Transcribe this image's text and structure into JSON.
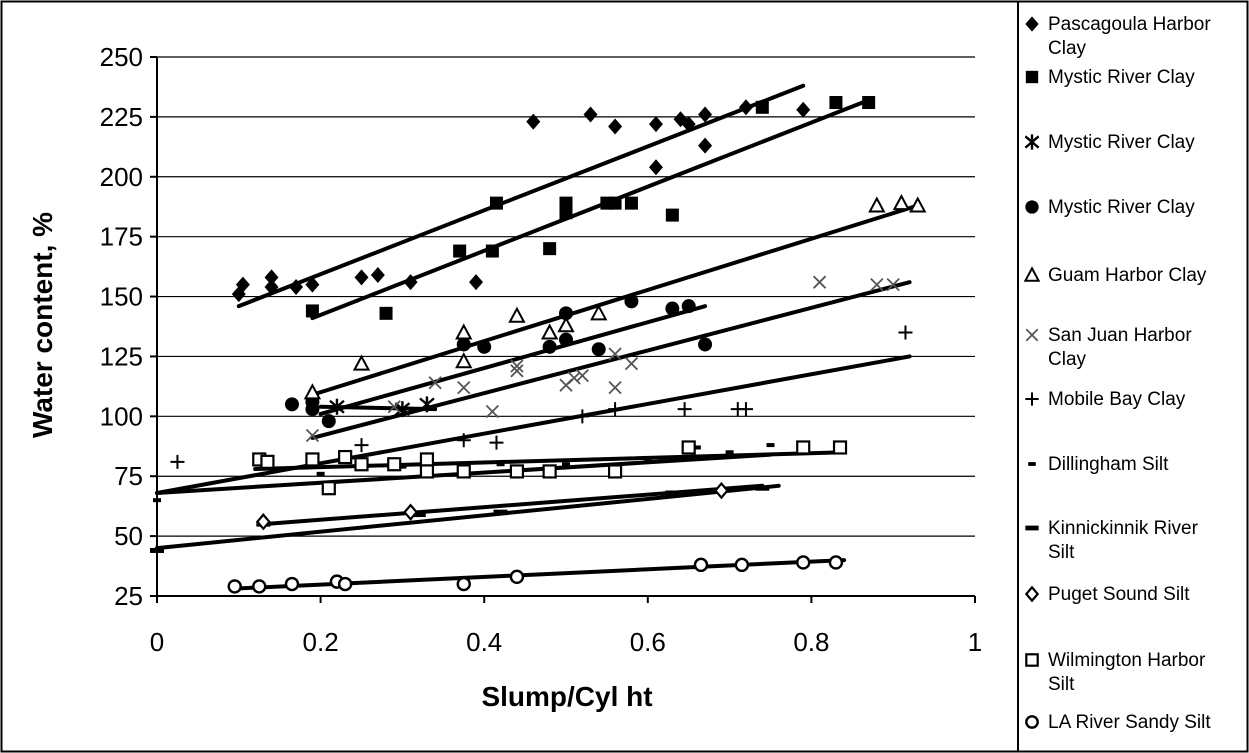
{
  "chart_data": {
    "type": "scatter",
    "xlabel": "Slump/Cyl ht",
    "ylabel": "Water content, %",
    "xlim": [
      0,
      1
    ],
    "ylim": [
      25,
      250
    ],
    "x_ticks": [
      0,
      0.2,
      0.4,
      0.6,
      0.8,
      1
    ],
    "x_tick_labels": [
      "0",
      "0.2",
      "0.4",
      "0.6",
      "0.8",
      "1"
    ],
    "y_ticks": [
      25,
      50,
      75,
      100,
      125,
      150,
      175,
      200,
      225,
      250
    ],
    "y_tick_labels": [
      "25",
      "50",
      "75",
      "100",
      "125",
      "150",
      "175",
      "200",
      "225",
      "250"
    ],
    "grid": "horizontal",
    "legend_position": "right",
    "series": [
      {
        "name": "Pascagoula Harbor Clay",
        "marker": "diamond-filled",
        "points": [
          [
            0.1,
            151
          ],
          [
            0.105,
            155
          ],
          [
            0.14,
            154
          ],
          [
            0.14,
            158
          ],
          [
            0.17,
            154
          ],
          [
            0.19,
            155
          ],
          [
            0.25,
            158
          ],
          [
            0.27,
            159
          ],
          [
            0.31,
            156
          ],
          [
            0.39,
            156
          ],
          [
            0.46,
            223
          ],
          [
            0.53,
            226
          ],
          [
            0.56,
            221
          ],
          [
            0.61,
            222
          ],
          [
            0.61,
            204
          ],
          [
            0.64,
            224
          ],
          [
            0.65,
            222
          ],
          [
            0.67,
            226
          ],
          [
            0.67,
            213
          ],
          [
            0.72,
            229
          ],
          [
            0.79,
            228
          ]
        ],
        "trend": [
          [
            0.1,
            146
          ],
          [
            0.79,
            238
          ]
        ]
      },
      {
        "name": "Mystic River Clay",
        "marker": "square-filled",
        "points": [
          [
            0.19,
            144
          ],
          [
            0.28,
            143
          ],
          [
            0.37,
            169
          ],
          [
            0.41,
            169
          ],
          [
            0.415,
            189
          ],
          [
            0.48,
            170
          ],
          [
            0.5,
            185
          ],
          [
            0.5,
            189
          ],
          [
            0.55,
            189
          ],
          [
            0.56,
            189
          ],
          [
            0.58,
            189
          ],
          [
            0.63,
            184
          ],
          [
            0.74,
            229
          ],
          [
            0.83,
            231
          ],
          [
            0.87,
            231
          ]
        ],
        "trend": [
          [
            0.19,
            141
          ],
          [
            0.87,
            232
          ]
        ]
      },
      {
        "name": "Mystic River Clay",
        "marker": "asterisk",
        "points": [
          [
            0.22,
            104
          ],
          [
            0.3,
            103
          ],
          [
            0.33,
            105
          ]
        ],
        "trend": [
          [
            0.2,
            104
          ],
          [
            0.34,
            103
          ]
        ]
      },
      {
        "name": "Mystic River Clay",
        "marker": "circle-filled",
        "points": [
          [
            0.165,
            105
          ],
          [
            0.19,
            106
          ],
          [
            0.19,
            103
          ],
          [
            0.21,
            98
          ],
          [
            0.375,
            130
          ],
          [
            0.4,
            129
          ],
          [
            0.48,
            129
          ],
          [
            0.5,
            132
          ],
          [
            0.5,
            143
          ],
          [
            0.54,
            128
          ],
          [
            0.58,
            148
          ],
          [
            0.63,
            145
          ],
          [
            0.65,
            146
          ],
          [
            0.67,
            130
          ]
        ],
        "trend": [
          [
            0.2,
            101
          ],
          [
            0.67,
            146
          ]
        ]
      },
      {
        "name": "Guam Harbor Clay",
        "marker": "triangle-open",
        "points": [
          [
            0.19,
            110
          ],
          [
            0.25,
            122
          ],
          [
            0.375,
            135
          ],
          [
            0.375,
            123
          ],
          [
            0.44,
            142
          ],
          [
            0.48,
            135
          ],
          [
            0.5,
            138
          ],
          [
            0.54,
            143
          ],
          [
            0.88,
            188
          ],
          [
            0.91,
            189
          ],
          [
            0.93,
            188
          ]
        ],
        "trend": [
          [
            0.19,
            109
          ],
          [
            0.93,
            188
          ]
        ]
      },
      {
        "name": "San Juan Harbor Clay",
        "marker": "x",
        "points": [
          [
            0.19,
            92
          ],
          [
            0.29,
            104
          ],
          [
            0.34,
            114
          ],
          [
            0.375,
            112
          ],
          [
            0.41,
            102
          ],
          [
            0.44,
            121
          ],
          [
            0.44,
            119
          ],
          [
            0.5,
            113
          ],
          [
            0.51,
            116
          ],
          [
            0.52,
            117
          ],
          [
            0.56,
            126
          ],
          [
            0.56,
            112
          ],
          [
            0.58,
            122
          ],
          [
            0.81,
            156
          ],
          [
            0.88,
            155
          ],
          [
            0.9,
            155
          ]
        ],
        "trend": [
          [
            0.19,
            91
          ],
          [
            0.92,
            156
          ]
        ]
      },
      {
        "name": "Mobile Bay Clay",
        "marker": "plus",
        "points": [
          [
            0.025,
            81
          ],
          [
            0.25,
            88
          ],
          [
            0.375,
            90
          ],
          [
            0.415,
            89
          ],
          [
            0.52,
            100
          ],
          [
            0.56,
            103
          ],
          [
            0.645,
            103
          ],
          [
            0.71,
            103
          ],
          [
            0.72,
            103
          ],
          [
            0.915,
            135
          ]
        ],
        "trend": [
          [
            0,
            68
          ],
          [
            0.92,
            125
          ]
        ]
      },
      {
        "name": "Dillingham Silt",
        "marker": "dash-small",
        "points": [
          [
            0,
            65
          ],
          [
            0.2,
            76
          ],
          [
            0.3,
            79
          ],
          [
            0.42,
            80
          ],
          [
            0.5,
            80
          ],
          [
            0.6,
            82
          ],
          [
            0.66,
            87
          ],
          [
            0.7,
            85
          ],
          [
            0.75,
            88
          ]
        ],
        "trend": [
          [
            0,
            68
          ],
          [
            0.75,
            84
          ]
        ]
      },
      {
        "name": "Kinnickinnik River Silt",
        "marker": "dash-large",
        "points": [
          [
            0,
            44
          ],
          [
            0.13,
            55
          ],
          [
            0.32,
            59
          ],
          [
            0.42,
            60
          ],
          [
            0.63,
            68
          ],
          [
            0.74,
            70
          ]
        ],
        "trend": [
          [
            0,
            45
          ],
          [
            0.76,
            71
          ]
        ]
      },
      {
        "name": "Puget Sound Silt",
        "marker": "diamond-open",
        "points": [
          [
            0.13,
            56
          ],
          [
            0.31,
            60
          ],
          [
            0.69,
            69
          ]
        ],
        "trend": [
          [
            0.13,
            55
          ],
          [
            0.74,
            71
          ]
        ]
      },
      {
        "name": "Wilmington Harbor Silt",
        "marker": "square-open",
        "points": [
          [
            0.125,
            82
          ],
          [
            0.135,
            81
          ],
          [
            0.19,
            82
          ],
          [
            0.21,
            70
          ],
          [
            0.23,
            83
          ],
          [
            0.25,
            80
          ],
          [
            0.29,
            80
          ],
          [
            0.33,
            82
          ],
          [
            0.33,
            77
          ],
          [
            0.375,
            77
          ],
          [
            0.44,
            77
          ],
          [
            0.48,
            77
          ],
          [
            0.56,
            77
          ],
          [
            0.65,
            87
          ],
          [
            0.79,
            87
          ],
          [
            0.835,
            87
          ]
        ],
        "trend": [
          [
            0.12,
            78
          ],
          [
            0.84,
            85
          ]
        ]
      },
      {
        "name": "LA River Sandy Silt",
        "marker": "circle-open",
        "points": [
          [
            0.095,
            29
          ],
          [
            0.125,
            29
          ],
          [
            0.165,
            30
          ],
          [
            0.22,
            31
          ],
          [
            0.23,
            30
          ],
          [
            0.375,
            30
          ],
          [
            0.44,
            33
          ],
          [
            0.665,
            38
          ],
          [
            0.715,
            38
          ],
          [
            0.79,
            39
          ],
          [
            0.83,
            39
          ]
        ],
        "trend": [
          [
            0.09,
            28
          ],
          [
            0.84,
            40
          ]
        ]
      }
    ],
    "legend": [
      {
        "marker": "diamond-filled",
        "lines": [
          "Pascagoula Harbor",
          "Clay"
        ]
      },
      {
        "marker": "square-filled",
        "lines": [
          "Mystic River Clay"
        ]
      },
      {
        "marker": "asterisk",
        "lines": [
          "Mystic River Clay"
        ]
      },
      {
        "marker": "circle-filled",
        "lines": [
          "Mystic River Clay"
        ]
      },
      {
        "marker": "triangle-open",
        "lines": [
          "Guam Harbor Clay"
        ]
      },
      {
        "marker": "x",
        "lines": [
          "San Juan Harbor",
          "Clay"
        ]
      },
      {
        "marker": "plus",
        "lines": [
          "Mobile Bay Clay"
        ]
      },
      {
        "marker": "dash-small",
        "lines": [
          "Dillingham Silt"
        ]
      },
      {
        "marker": "dash-large",
        "lines": [
          "Kinnickinnik River",
          "Silt"
        ]
      },
      {
        "marker": "diamond-open",
        "lines": [
          "Puget Sound Silt"
        ]
      },
      {
        "marker": "square-open",
        "lines": [
          "Wilmington Harbor",
          "Silt"
        ]
      },
      {
        "marker": "circle-open",
        "lines": [
          "LA River Sandy Silt"
        ]
      }
    ]
  }
}
